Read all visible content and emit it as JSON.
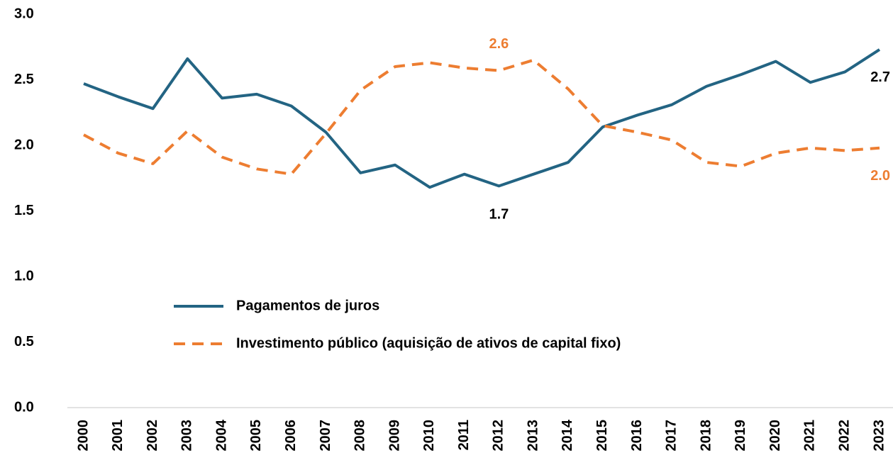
{
  "chart_data": {
    "type": "line",
    "categories": [
      "2000",
      "2001",
      "2002",
      "2003",
      "2004",
      "2005",
      "2006",
      "2007",
      "2008",
      "2009",
      "2010",
      "2011",
      "2012",
      "2013",
      "2014",
      "2015",
      "2016",
      "2017",
      "2018",
      "2019",
      "2020",
      "2021",
      "2022",
      "2023"
    ],
    "series": [
      {
        "name": "Pagamentos de juros",
        "color": "#236483",
        "dash": false,
        "values": [
          2.47,
          2.37,
          2.28,
          2.66,
          2.36,
          2.39,
          2.3,
          2.1,
          1.79,
          1.85,
          1.68,
          1.78,
          1.69,
          1.78,
          1.87,
          2.14,
          2.23,
          2.31,
          2.45,
          2.54,
          2.64,
          2.48,
          2.56,
          2.73
        ],
        "value_labels": [
          null,
          null,
          null,
          null,
          null,
          null,
          null,
          null,
          null,
          null,
          null,
          null,
          "1.7",
          null,
          null,
          null,
          null,
          null,
          null,
          null,
          null,
          null,
          null,
          "2.7"
        ]
      },
      {
        "name": "Investimento público (aquisição de ativos de capital fixo)",
        "color": "#ed7d31",
        "dash": true,
        "values": [
          2.08,
          1.94,
          1.86,
          2.11,
          1.91,
          1.82,
          1.78,
          2.09,
          2.42,
          2.6,
          2.63,
          2.59,
          2.57,
          2.65,
          2.43,
          2.15,
          2.1,
          2.04,
          1.87,
          1.84,
          1.94,
          1.98,
          1.96,
          1.98
        ],
        "value_labels": [
          null,
          null,
          null,
          null,
          null,
          null,
          null,
          null,
          null,
          null,
          null,
          null,
          "2.6",
          null,
          null,
          null,
          null,
          null,
          null,
          null,
          null,
          null,
          null,
          "2.0"
        ]
      }
    ],
    "ylim": [
      0,
      3
    ],
    "yticks": [
      {
        "value": 0,
        "label": "0.0"
      },
      0.5,
      {
        "value": 1,
        "label": "1.0"
      },
      1.5,
      {
        "value": 2,
        "label": "2.0"
      },
      2.5,
      {
        "value": 3,
        "label": "3.0"
      }
    ],
    "grid": false
  }
}
